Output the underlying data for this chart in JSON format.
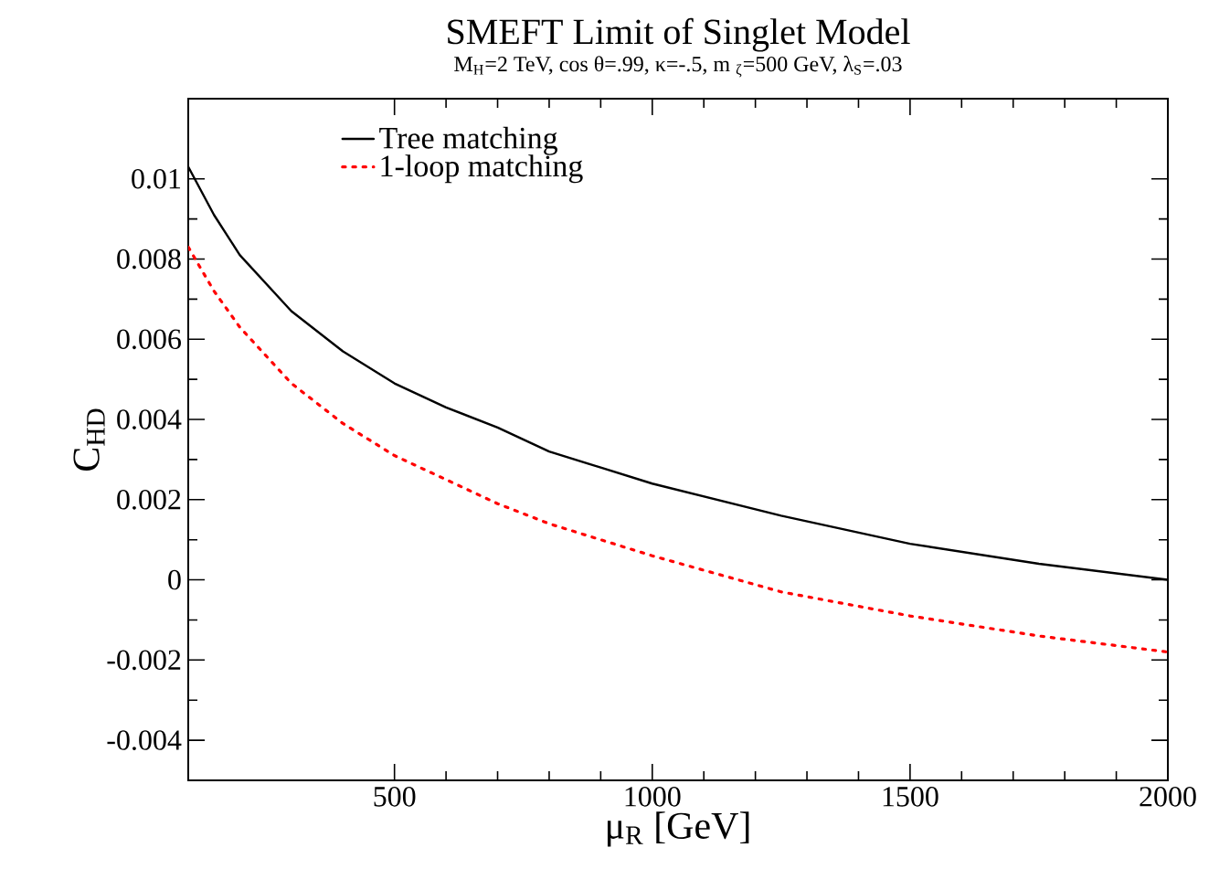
{
  "chart_data": {
    "type": "line",
    "title": "SMEFT Limit of Singlet Model",
    "subtitle": "M$_{H}$=2 TeV, cos θ=.99, κ=-.5, m $_{ζ}$=500 GeV, λ$_{S}$=.03",
    "xlabel": "μ$_{R}$ [GeV]",
    "ylabel": "C$_{HD}$",
    "x": [
      100,
      150,
      200,
      300,
      400,
      500,
      600,
      700,
      800,
      900,
      1000,
      1250,
      1500,
      1750,
      2000
    ],
    "series": [
      {
        "name": "Tree matching",
        "color": "#000000",
        "line_style": "solid",
        "values": [
          0.0103,
          0.0091,
          0.0081,
          0.0067,
          0.0057,
          0.0049,
          0.0043,
          0.0038,
          0.0032,
          0.0028,
          0.0024,
          0.0016,
          0.0009,
          0.0004,
          0.0
        ]
      },
      {
        "name": "1-loop matching",
        "color": "#ff0000",
        "line_style": "dotted",
        "values": [
          0.0083,
          0.0072,
          0.0063,
          0.0049,
          0.0039,
          0.0031,
          0.0025,
          0.0019,
          0.0014,
          0.001,
          0.0006,
          -0.0003,
          -0.0009,
          -0.0014,
          -0.0018
        ]
      }
    ],
    "xlim": [
      100,
      2000
    ],
    "xticks": [
      500,
      1000,
      1500,
      2000
    ],
    "ylim": [
      -0.005,
      0.012
    ],
    "yticks": [
      -0.004,
      -0.002,
      0,
      0.002,
      0.004,
      0.006,
      0.008,
      0.01
    ],
    "grid": false,
    "legend": "top left",
    "marker": "none"
  }
}
